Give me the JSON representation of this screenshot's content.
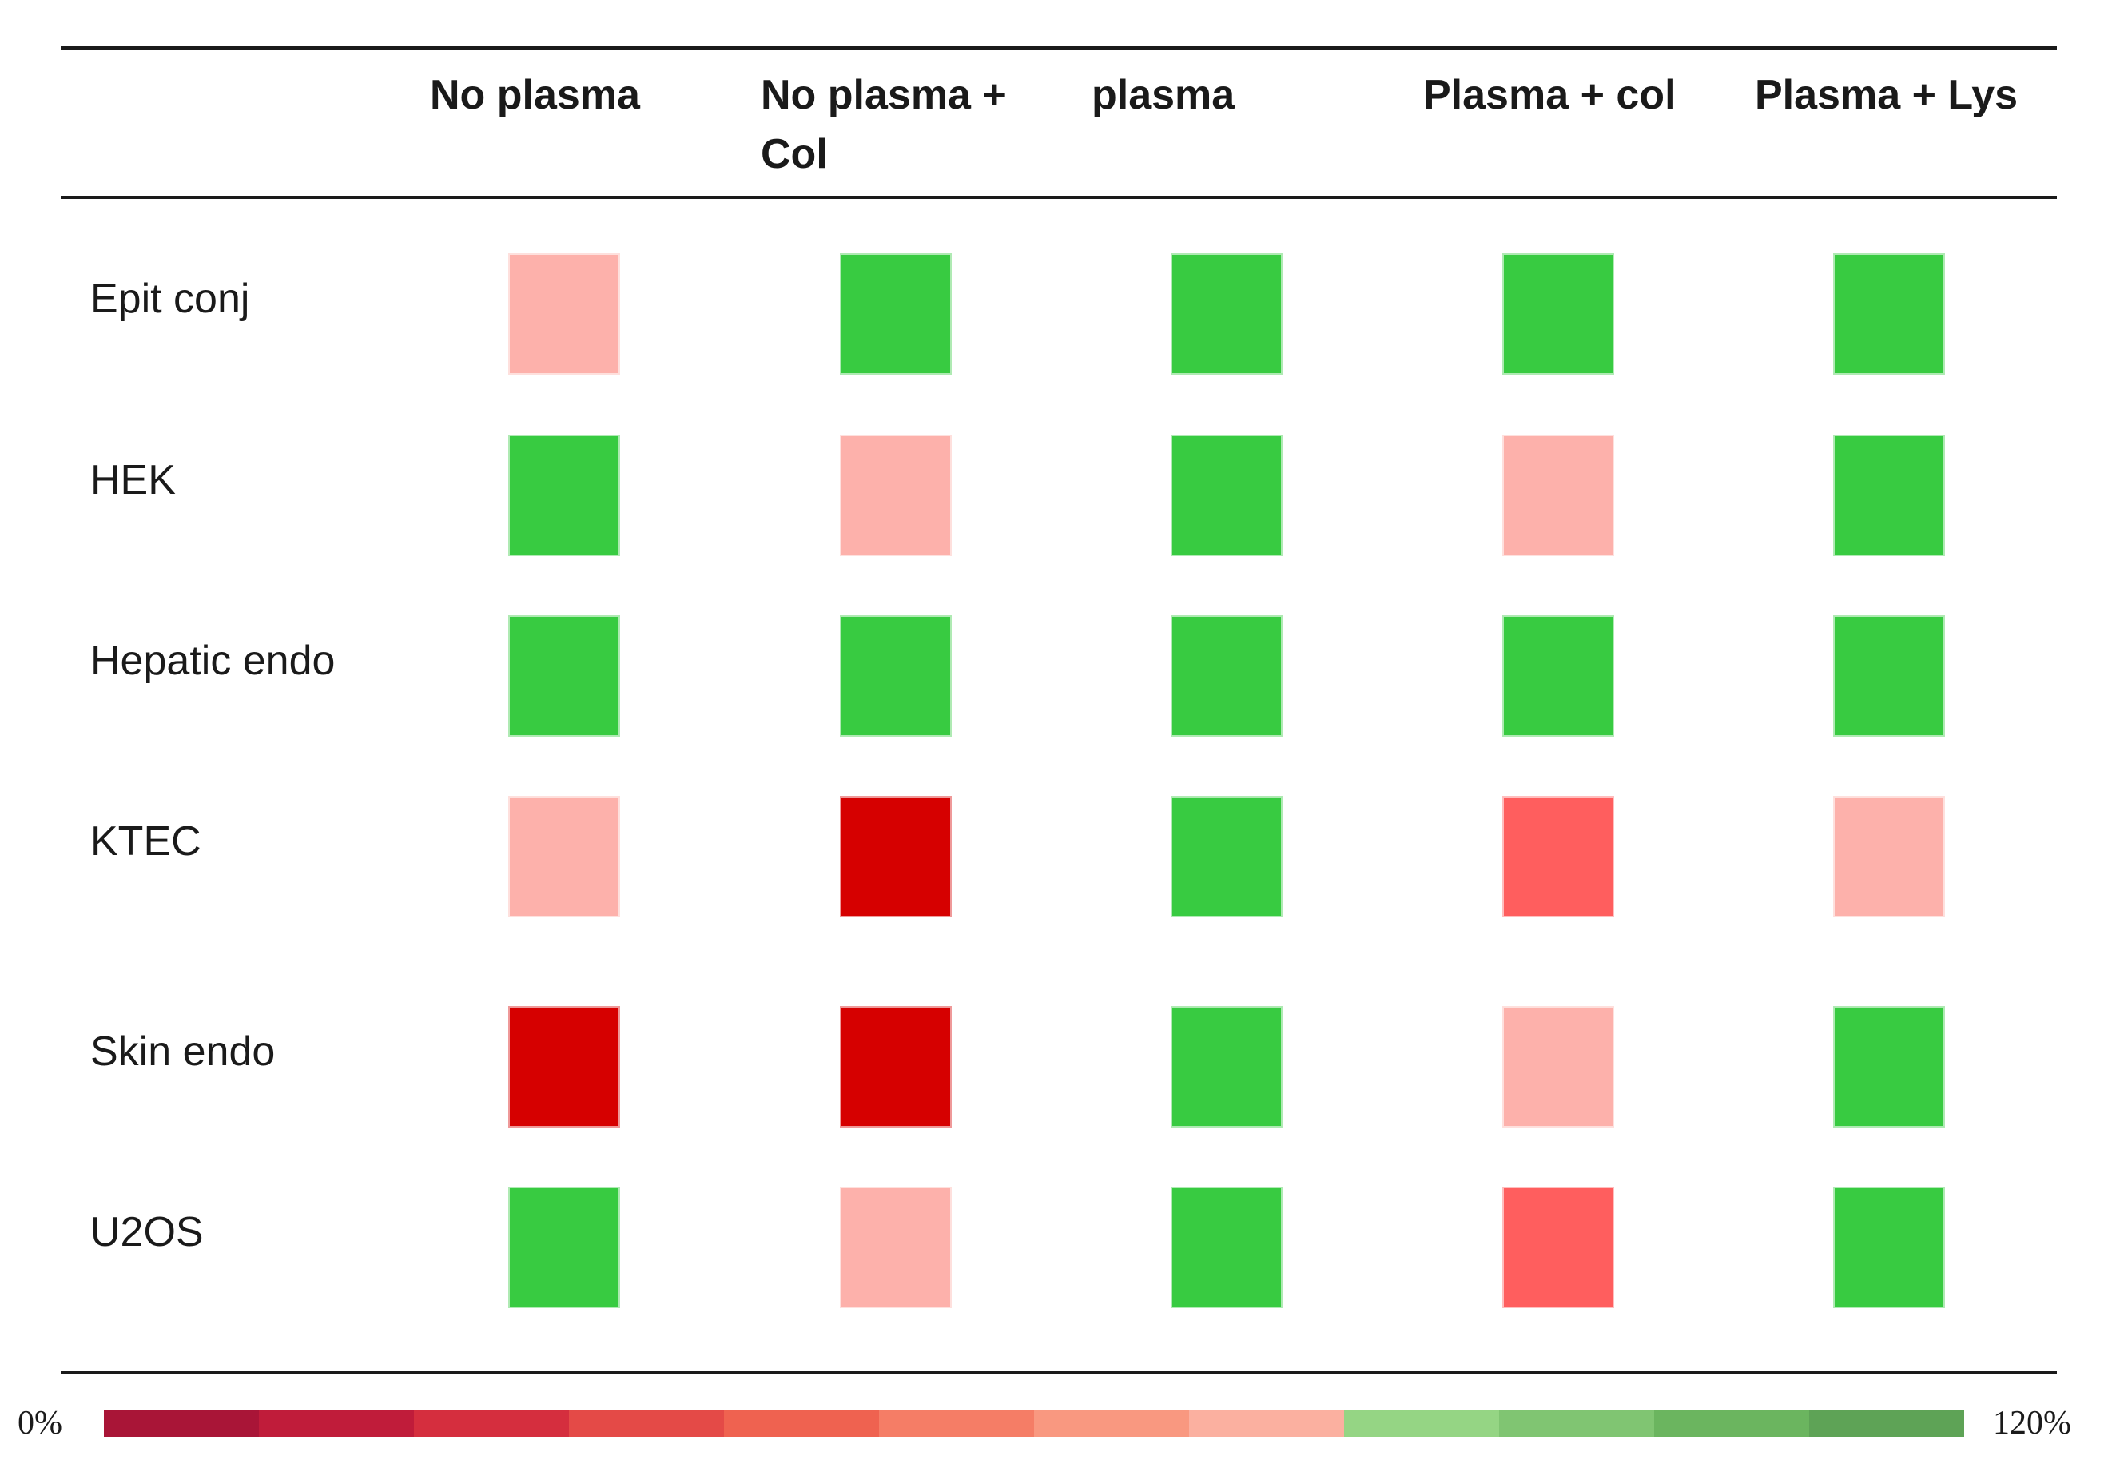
{
  "chart_data": {
    "type": "heatmap",
    "title": "",
    "columns": [
      "No plasma",
      "No plasma + Col",
      "plasma",
      "Plasma + col",
      "Plasma + Lys"
    ],
    "rows": [
      "Epit conj",
      "HEK",
      "Hepatic endo",
      "KTEC",
      "Skin endo",
      "U2OS"
    ],
    "cell_colors": [
      [
        "#fdb1ab",
        "#38cb41",
        "#38cb41",
        "#38cb41",
        "#38cb41"
      ],
      [
        "#38cb41",
        "#fdb1ab",
        "#38cb41",
        "#fdb1ab",
        "#38cb41"
      ],
      [
        "#38cb41",
        "#38cb41",
        "#38cb41",
        "#38cb41",
        "#38cb41"
      ],
      [
        "#fdb1ab",
        "#d60000",
        "#38cb41",
        "#ff5e5e",
        "#fdb1ab"
      ],
      [
        "#d60000",
        "#d60000",
        "#38cb41",
        "#fdb1ab",
        "#38cb41"
      ],
      [
        "#38cb41",
        "#fdb1ab",
        "#38cb41",
        "#ff5e5e",
        "#38cb41"
      ]
    ],
    "color_scale": {
      "min_label": "0%",
      "max_label": "120%",
      "colors": [
        "#a91537",
        "#c01c3a",
        "#d52e3e",
        "#e44a47",
        "#ef6250",
        "#f57d66",
        "#f99880",
        "#fbb0a0",
        "#95d584",
        "#80c572",
        "#6bb55f",
        "#5ea356"
      ]
    },
    "grid": false,
    "legend": "bottom"
  }
}
